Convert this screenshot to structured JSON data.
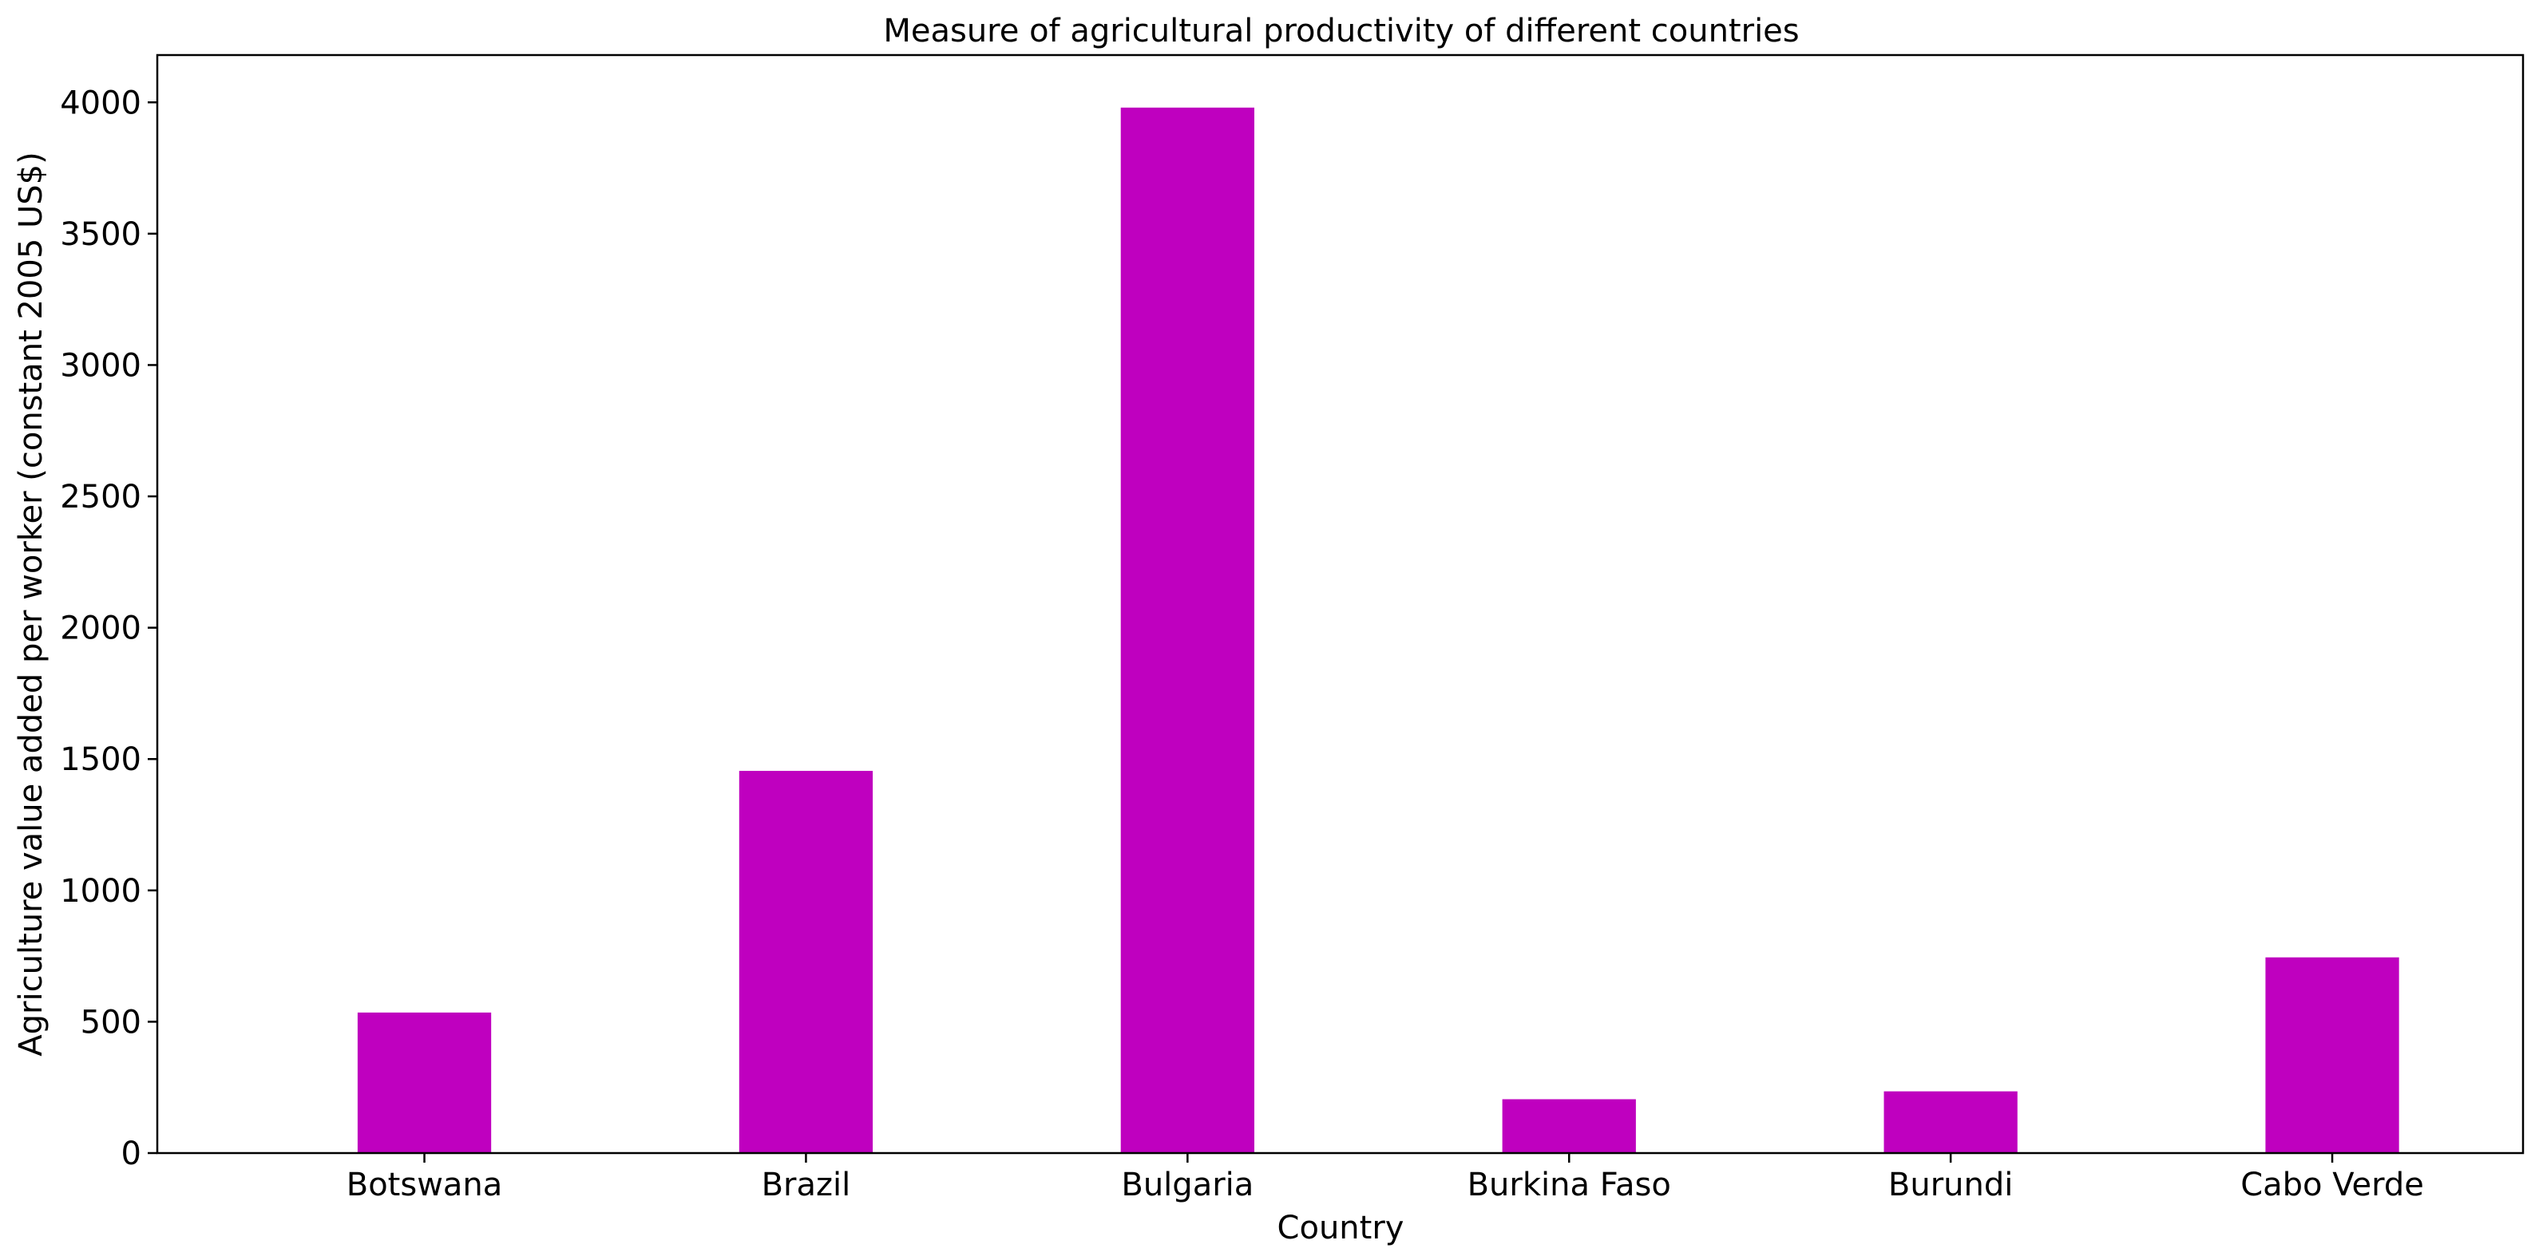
{
  "chart_data": {
    "type": "bar",
    "title": "Measure of agricultural productivity of different countries",
    "xlabel": "Country",
    "ylabel": "Agriculture value added per worker (constant 2005 US$)",
    "categories": [
      "Botswana",
      "Brazil",
      "Bulgaria",
      "Burkina Faso",
      "Burundi",
      "Cabo Verde"
    ],
    "series": [
      {
        "values": [
          535,
          1455,
          3980,
          205,
          235,
          745
        ]
      }
    ],
    "ylim": [
      0,
      4180
    ],
    "yticks": [
      0,
      500,
      1000,
      1500,
      2000,
      2500,
      3000,
      3500,
      4000
    ],
    "grid": false,
    "legend": "none",
    "bar_color": "#bf00bf"
  }
}
